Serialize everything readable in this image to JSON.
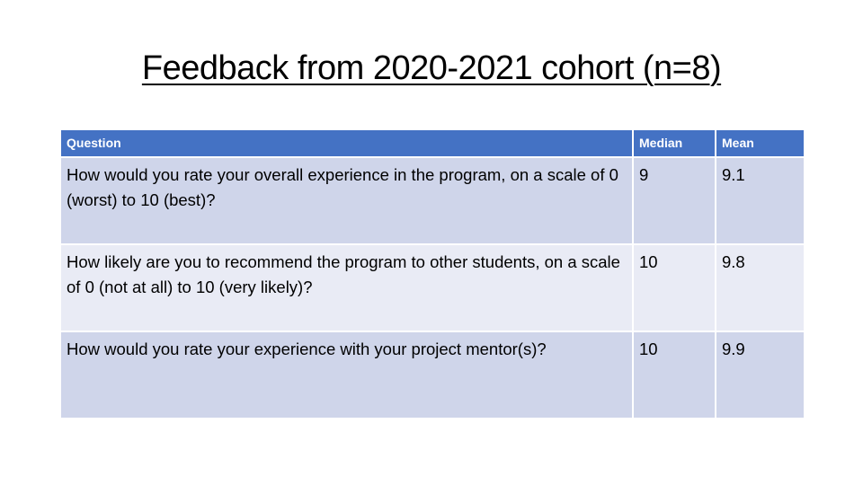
{
  "slide": {
    "title": "Feedback from 2020-2021 cohort (n=8)"
  },
  "table": {
    "headers": {
      "question": "Question",
      "median": "Median",
      "mean": "Mean"
    },
    "rows": [
      {
        "question": "How would you rate your overall experience in the program, on a scale of 0 (worst) to 10 (best)?",
        "median": "9",
        "mean": "9.1"
      },
      {
        "question": "How likely are you to recommend the program to other students, on a scale of 0 (not at all) to 10 (very likely)?",
        "median": "10",
        "mean": "9.8"
      },
      {
        "question": "How would you rate your experience with your project mentor(s)?",
        "median": "10",
        "mean": "9.9"
      }
    ]
  },
  "colors": {
    "header_bg": "#4472c4",
    "row_band_dark": "#cfd5ea",
    "row_band_light": "#e9ebf5"
  }
}
